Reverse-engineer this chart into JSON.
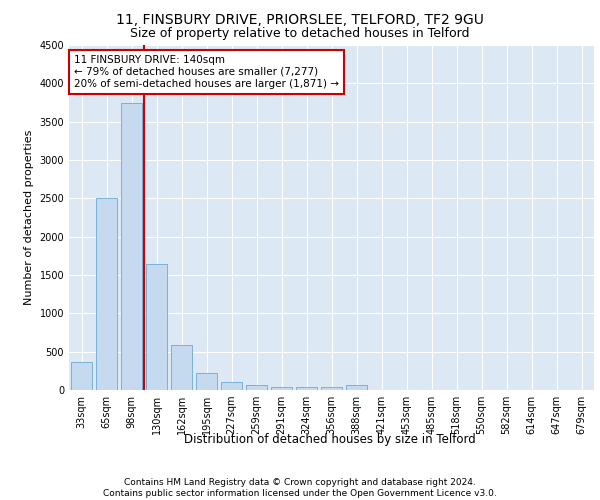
{
  "title1": "11, FINSBURY DRIVE, PRIORSLEE, TELFORD, TF2 9GU",
  "title2": "Size of property relative to detached houses in Telford",
  "xlabel": "Distribution of detached houses by size in Telford",
  "ylabel": "Number of detached properties",
  "categories": [
    "33sqm",
    "65sqm",
    "98sqm",
    "130sqm",
    "162sqm",
    "195sqm",
    "227sqm",
    "259sqm",
    "291sqm",
    "324sqm",
    "356sqm",
    "388sqm",
    "421sqm",
    "453sqm",
    "485sqm",
    "518sqm",
    "550sqm",
    "582sqm",
    "614sqm",
    "647sqm",
    "679sqm"
  ],
  "values": [
    370,
    2500,
    3750,
    1640,
    590,
    225,
    110,
    60,
    45,
    40,
    40,
    65,
    0,
    0,
    0,
    0,
    0,
    0,
    0,
    0,
    0
  ],
  "bar_color": "#c5d9ef",
  "bar_edge_color": "#6aaad4",
  "vline_color": "#cc0000",
  "vline_x_idx": 2.5,
  "annotation_text": "11 FINSBURY DRIVE: 140sqm\n← 79% of detached houses are smaller (7,277)\n20% of semi-detached houses are larger (1,871) →",
  "annotation_box_color": "#ffffff",
  "annotation_box_edge_color": "#cc0000",
  "ylim": [
    0,
    4500
  ],
  "yticks": [
    0,
    500,
    1000,
    1500,
    2000,
    2500,
    3000,
    3500,
    4000,
    4500
  ],
  "background_color": "#dce9f5",
  "footer_text": "Contains HM Land Registry data © Crown copyright and database right 2024.\nContains public sector information licensed under the Open Government Licence v3.0.",
  "title1_fontsize": 10,
  "title2_fontsize": 9,
  "xlabel_fontsize": 8.5,
  "ylabel_fontsize": 8,
  "tick_fontsize": 7,
  "annotation_fontsize": 7.5,
  "footer_fontsize": 6.5
}
